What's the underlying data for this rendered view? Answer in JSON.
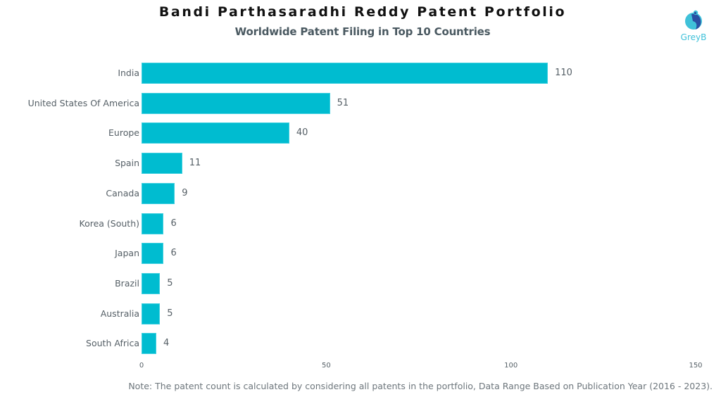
{
  "header": {
    "title": "Bandi Parthasaradhi Reddy Patent Portfolio",
    "subtitle": "Worldwide Patent Filing in Top 10 Countries"
  },
  "logo": {
    "text": "GreyB",
    "icon": "greyb-logo-icon",
    "color": "#3fc1d9"
  },
  "footer": {
    "note": "Note: The patent count is calculated by considering all patents in the portfolio, Data Range Based on Publication Year (2016 - 2023)."
  },
  "colors": {
    "bar": "#00bcd0",
    "text": "#555f66",
    "subtitle": "#4a5961"
  },
  "chart_data": {
    "type": "bar",
    "orientation": "horizontal",
    "title": "Bandi Parthasaradhi Reddy Patent Portfolio",
    "subtitle": "Worldwide Patent Filing in Top 10 Countries",
    "categories": [
      "India",
      "United States Of America",
      "Europe",
      "Spain",
      "Canada",
      "Korea (South)",
      "Japan",
      "Brazil",
      "Australia",
      "South Africa"
    ],
    "values": [
      110,
      51,
      40,
      11,
      9,
      6,
      6,
      5,
      5,
      4
    ],
    "xlabel": "",
    "ylabel": "",
    "xlim": [
      0,
      150
    ],
    "xticks": [
      0,
      50,
      100,
      150
    ],
    "grid": false,
    "data_labels": true,
    "legend": null
  }
}
